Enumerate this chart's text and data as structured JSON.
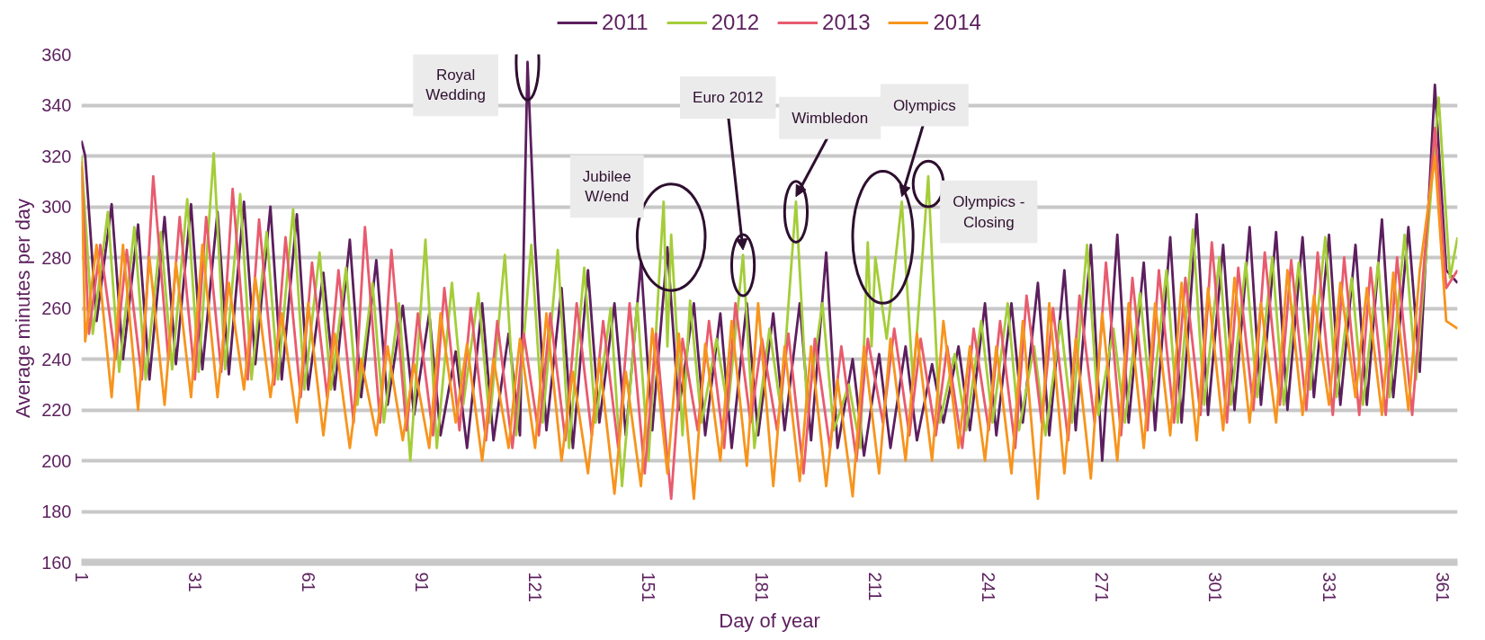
{
  "chart_data": {
    "type": "line",
    "xlabel": "Day of year",
    "ylabel": "Average minutes per day",
    "xlim": [
      1,
      365
    ],
    "xticks": [
      1,
      31,
      61,
      91,
      121,
      151,
      181,
      211,
      241,
      271,
      301,
      331,
      361
    ],
    "ylim": [
      160,
      360
    ],
    "yticks": [
      160,
      180,
      200,
      220,
      240,
      260,
      280,
      300,
      320,
      340,
      360
    ],
    "grid": "y",
    "legend": "top",
    "line_style": "solid",
    "marker": "none",
    "annotations": [
      {
        "text": "Royal Wedding",
        "x": 119,
        "y": 357
      },
      {
        "text": "Jubilee W/end",
        "x": 155,
        "y": 302
      },
      {
        "text": "Euro 2012",
        "x": 176,
        "y": 281
      },
      {
        "text": "Wimbledon",
        "x": 190,
        "y": 302
      },
      {
        "text": "Olympics",
        "x": 218,
        "y": 302
      },
      {
        "text": "Olympics - Closing",
        "x": 225,
        "y": 312
      }
    ],
    "series": [
      {
        "name": "2011",
        "color": "#5c1f5e",
        "x": [
          1,
          2,
          5,
          9,
          12,
          16,
          19,
          23,
          26,
          30,
          33,
          37,
          40,
          44,
          47,
          51,
          54,
          58,
          61,
          65,
          68,
          72,
          75,
          79,
          82,
          86,
          89,
          93,
          96,
          100,
          103,
          107,
          110,
          114,
          117,
          119,
          121,
          124,
          128,
          131,
          135,
          138,
          142,
          145,
          149,
          152,
          156,
          159,
          163,
          166,
          170,
          173,
          177,
          180,
          184,
          187,
          191,
          194,
          198,
          201,
          205,
          208,
          212,
          215,
          219,
          222,
          226,
          229,
          233,
          236,
          240,
          243,
          247,
          250,
          254,
          257,
          261,
          264,
          268,
          271,
          275,
          278,
          282,
          285,
          289,
          292,
          296,
          299,
          303,
          306,
          310,
          313,
          317,
          320,
          324,
          327,
          331,
          334,
          338,
          341,
          345,
          348,
          352,
          355,
          359,
          362,
          365
        ],
        "values": [
          326,
          320,
          255,
          301,
          240,
          293,
          232,
          296,
          238,
          301,
          236,
          298,
          234,
          302,
          238,
          300,
          232,
          297,
          228,
          274,
          228,
          287,
          225,
          279,
          222,
          261,
          218,
          258,
          210,
          243,
          205,
          262,
          208,
          250,
          210,
          357,
          285,
          212,
          268,
          205,
          275,
          215,
          262,
          210,
          278,
          212,
          284,
          220,
          262,
          210,
          258,
          205,
          262,
          210,
          258,
          212,
          262,
          208,
          282,
          205,
          240,
          202,
          242,
          205,
          245,
          208,
          238,
          215,
          245,
          212,
          262,
          210,
          262,
          215,
          270,
          210,
          275,
          212,
          285,
          200,
          289,
          215,
          278,
          212,
          288,
          215,
          297,
          218,
          285,
          220,
          292,
          222,
          290,
          220,
          288,
          225,
          289,
          222,
          285,
          222,
          295,
          225,
          292,
          235,
          348,
          275,
          270
        ]
      },
      {
        "name": "2012",
        "color": "#a4cd39",
        "x": [
          1,
          4,
          8,
          11,
          15,
          18,
          22,
          25,
          29,
          32,
          36,
          39,
          43,
          46,
          50,
          53,
          57,
          60,
          64,
          67,
          71,
          74,
          78,
          81,
          85,
          88,
          92,
          95,
          99,
          102,
          106,
          109,
          113,
          116,
          120,
          123,
          127,
          130,
          134,
          137,
          141,
          144,
          148,
          151,
          155,
          156,
          157,
          160,
          162,
          165,
          169,
          172,
          176,
          179,
          183,
          186,
          190,
          193,
          197,
          200,
          204,
          207,
          209,
          210,
          211,
          214,
          218,
          221,
          225,
          228,
          232,
          235,
          239,
          242,
          246,
          249,
          253,
          256,
          260,
          263,
          267,
          270,
          274,
          277,
          281,
          284,
          288,
          291,
          295,
          298,
          302,
          305,
          309,
          312,
          316,
          319,
          323,
          326,
          330,
          333,
          337,
          340,
          344,
          347,
          351,
          354,
          360,
          363,
          365
        ],
        "values": [
          320,
          250,
          298,
          235,
          292,
          232,
          290,
          236,
          303,
          235,
          321,
          236,
          305,
          232,
          290,
          232,
          299,
          228,
          282,
          228,
          276,
          222,
          270,
          215,
          262,
          200,
          287,
          205,
          270,
          222,
          266,
          215,
          281,
          210,
          285,
          215,
          283,
          205,
          276,
          215,
          260,
          190,
          262,
          200,
          302,
          245,
          289,
          210,
          263,
          215,
          248,
          220,
          281,
          205,
          252,
          220,
          302,
          220,
          262,
          212,
          230,
          205,
          286,
          245,
          280,
          248,
          302,
          230,
          312,
          215,
          242,
          212,
          255,
          215,
          262,
          212,
          245,
          210,
          255,
          215,
          285,
          218,
          252,
          215,
          266,
          220,
          275,
          215,
          291,
          222,
          280,
          222,
          278,
          225,
          280,
          222,
          278,
          228,
          288,
          225,
          272,
          222,
          278,
          225,
          289,
          232,
          343,
          272,
          288
        ]
      },
      {
        "name": "2013",
        "color": "#e85b6e",
        "x": [
          1,
          3,
          6,
          10,
          13,
          17,
          20,
          24,
          27,
          31,
          34,
          38,
          41,
          45,
          48,
          52,
          55,
          59,
          62,
          66,
          69,
          73,
          76,
          80,
          83,
          87,
          90,
          94,
          97,
          101,
          104,
          108,
          111,
          115,
          118,
          122,
          125,
          129,
          132,
          136,
          139,
          143,
          146,
          150,
          153,
          157,
          160,
          164,
          167,
          171,
          174,
          178,
          181,
          185,
          188,
          192,
          195,
          199,
          202,
          206,
          209,
          213,
          216,
          220,
          223,
          227,
          230,
          234,
          237,
          241,
          244,
          248,
          251,
          255,
          258,
          262,
          265,
          269,
          272,
          276,
          279,
          283,
          286,
          290,
          293,
          297,
          300,
          304,
          307,
          311,
          314,
          318,
          321,
          325,
          328,
          332,
          335,
          339,
          342,
          346,
          349,
          353,
          356,
          359,
          362,
          365
        ],
        "values": [
          316,
          250,
          285,
          240,
          283,
          232,
          312,
          240,
          296,
          232,
          296,
          235,
          307,
          232,
          295,
          230,
          288,
          225,
          278,
          225,
          275,
          215,
          292,
          215,
          283,
          212,
          258,
          210,
          268,
          212,
          260,
          208,
          255,
          205,
          250,
          210,
          258,
          208,
          262,
          210,
          255,
          205,
          262,
          195,
          250,
          185,
          248,
          212,
          255,
          205,
          262,
          215,
          248,
          212,
          250,
          195,
          248,
          205,
          245,
          200,
          248,
          215,
          252,
          210,
          248,
          210,
          245,
          205,
          252,
          212,
          255,
          205,
          265,
          215,
          260,
          208,
          265,
          215,
          278,
          210,
          272,
          212,
          275,
          215,
          272,
          218,
          286,
          215,
          276,
          220,
          282,
          222,
          279,
          220,
          282,
          218,
          280,
          218,
          276,
          218,
          280,
          218,
          275,
          331,
          268,
          275
        ]
      },
      {
        "name": "2014",
        "color": "#f7941d",
        "x": [
          1,
          2,
          5,
          9,
          12,
          16,
          19,
          23,
          26,
          30,
          33,
          37,
          40,
          44,
          47,
          51,
          54,
          58,
          61,
          65,
          68,
          72,
          75,
          79,
          82,
          86,
          89,
          93,
          96,
          100,
          103,
          107,
          110,
          114,
          117,
          121,
          124,
          128,
          131,
          135,
          138,
          142,
          145,
          149,
          152,
          156,
          159,
          163,
          166,
          170,
          173,
          177,
          180,
          184,
          187,
          191,
          194,
          198,
          201,
          205,
          208,
          212,
          215,
          219,
          222,
          226,
          229,
          233,
          236,
          240,
          243,
          247,
          250,
          254,
          257,
          261,
          264,
          268,
          271,
          275,
          278,
          282,
          285,
          289,
          292,
          296,
          299,
          303,
          306,
          310,
          313,
          317,
          320,
          324,
          327,
          331,
          334,
          338,
          341,
          345,
          348,
          352,
          355,
          359,
          362,
          365
        ],
        "values": [
          318,
          247,
          285,
          225,
          285,
          220,
          280,
          222,
          278,
          225,
          285,
          225,
          270,
          228,
          272,
          225,
          258,
          215,
          262,
          210,
          250,
          205,
          240,
          210,
          245,
          208,
          238,
          205,
          258,
          215,
          246,
          200,
          240,
          205,
          248,
          205,
          258,
          200,
          235,
          195,
          240,
          187,
          235,
          190,
          252,
          195,
          250,
          185,
          246,
          200,
          255,
          198,
          262,
          190,
          245,
          192,
          245,
          190,
          232,
          186,
          245,
          195,
          248,
          200,
          250,
          200,
          255,
          205,
          245,
          200,
          245,
          195,
          255,
          185,
          262,
          195,
          248,
          193,
          258,
          200,
          262,
          205,
          262,
          210,
          270,
          208,
          268,
          212,
          272,
          215,
          262,
          215,
          275,
          218,
          265,
          222,
          270,
          225,
          268,
          218,
          274,
          220,
          275,
          320,
          255,
          252
        ]
      }
    ]
  }
}
